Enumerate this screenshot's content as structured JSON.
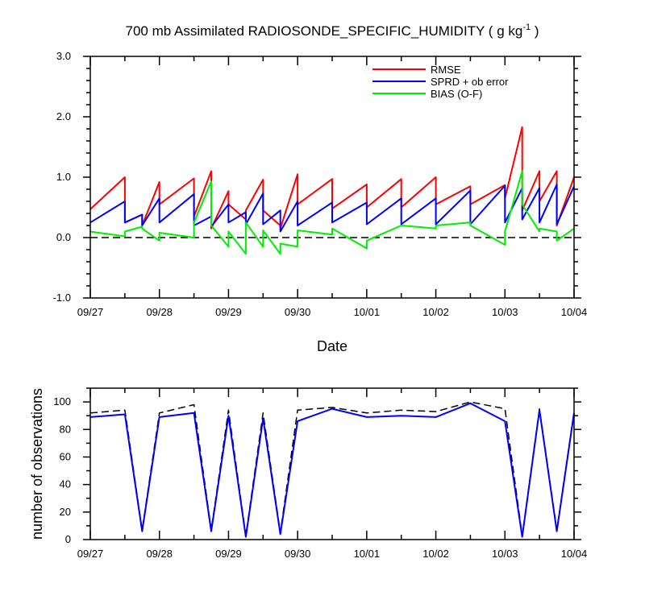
{
  "chart_data": [
    {
      "type": "line",
      "title": "700 mb Assimilated RADIOSONDE_SPECIFIC_HUMIDITY ( g kg",
      "title_superscript": "-1",
      "title_suffix": " )",
      "xlabel": "Date",
      "ylabel": "",
      "xlim": [
        0,
        7
      ],
      "ylim": [
        -1.0,
        3.0
      ],
      "x_tick_labels": [
        "09/27",
        "09/28",
        "09/29",
        "09/30",
        "10/01",
        "10/02",
        "10/03",
        "10/04"
      ],
      "y_tick_labels": [
        "-1.0",
        "0.0",
        "1.0",
        "2.0",
        "3.0"
      ],
      "y_ticks": [
        -1.0,
        0.0,
        1.0,
        2.0,
        3.0
      ],
      "reference_line": 0.0,
      "legend_position": "top-right",
      "series": [
        {
          "name": "RMSE",
          "color": "#ff0000",
          "x": [
            0,
            0.5,
            0.5,
            0.75,
            0.75,
            1,
            1,
            1.5,
            1.5,
            1.75,
            1.75,
            2,
            2,
            2.25,
            2.25,
            2.5,
            2.5,
            2.75,
            2.75,
            3,
            3,
            3.5,
            3.5,
            4,
            4,
            4.5,
            4.5,
            5,
            5,
            5.5,
            5.5,
            6,
            6,
            6.25,
            6.25,
            6.5,
            6.5,
            6.75,
            6.75,
            7
          ],
          "y": [
            0.47,
            1.0,
            0.25,
            0.38,
            0.2,
            0.92,
            0.55,
            0.98,
            0.35,
            1.1,
            0.15,
            0.77,
            0.55,
            0.3,
            0.45,
            0.96,
            0.45,
            0.2,
            0.15,
            1.05,
            0.55,
            0.97,
            0.48,
            0.88,
            0.5,
            0.97,
            0.5,
            1.0,
            0.55,
            0.85,
            0.55,
            0.87,
            0.65,
            1.83,
            0.45,
            1.1,
            0.6,
            1.1,
            0.2,
            1.0
          ]
        },
        {
          "name": "SPRD + ob error",
          "color": "#0000ff",
          "x": [
            0,
            0.5,
            0.5,
            0.75,
            0.75,
            1,
            1,
            1.5,
            1.5,
            1.75,
            1.75,
            2,
            2,
            2.25,
            2.25,
            2.5,
            2.5,
            2.75,
            2.75,
            3,
            3,
            3.5,
            3.5,
            4,
            4,
            4.5,
            4.5,
            5,
            5,
            5.5,
            5.5,
            6,
            6,
            6.25,
            6.25,
            6.5,
            6.5,
            6.75,
            6.75,
            7
          ],
          "y": [
            0.25,
            0.6,
            0.25,
            0.38,
            0.2,
            0.65,
            0.25,
            0.72,
            0.2,
            0.35,
            0.18,
            0.55,
            0.25,
            0.42,
            0.22,
            0.73,
            0.22,
            0.45,
            0.1,
            0.6,
            0.2,
            0.58,
            0.25,
            0.58,
            0.22,
            0.65,
            0.22,
            0.65,
            0.22,
            0.78,
            0.22,
            0.86,
            0.25,
            0.82,
            0.3,
            0.82,
            0.25,
            0.88,
            0.22,
            0.85
          ]
        },
        {
          "name": "BIAS (O-F)",
          "color": "#00ee00",
          "x": [
            0,
            0.5,
            0.5,
            0.75,
            0.75,
            1,
            1,
            1.5,
            1.5,
            1.75,
            1.75,
            2,
            2,
            2.25,
            2.25,
            2.5,
            2.5,
            2.75,
            2.75,
            3,
            3,
            3.5,
            3.5,
            4,
            4,
            4.5,
            4.5,
            5,
            5,
            5.5,
            5.5,
            6,
            6,
            6.25,
            6.25,
            6.5,
            6.5,
            6.75,
            6.75,
            7
          ],
          "y": [
            0.1,
            0.02,
            0.1,
            0.18,
            0.15,
            -0.05,
            0.08,
            0.0,
            0.25,
            0.93,
            0.2,
            -0.15,
            0.1,
            -0.27,
            0.25,
            -0.15,
            0.12,
            -0.27,
            -0.1,
            -0.15,
            0.12,
            0.05,
            0.15,
            -0.18,
            -0.05,
            0.2,
            0.2,
            0.15,
            0.2,
            0.25,
            0.2,
            -0.12,
            0.1,
            1.1,
            0.55,
            0.1,
            0.15,
            0.1,
            -0.05,
            0.15
          ]
        }
      ]
    },
    {
      "type": "line",
      "title": "",
      "xlabel": "",
      "ylabel": "number of observations",
      "xlim": [
        0,
        7
      ],
      "ylim": [
        0,
        110
      ],
      "x_tick_labels": [
        "09/27",
        "09/28",
        "09/29",
        "09/30",
        "10/01",
        "10/02",
        "10/03",
        "10/04"
      ],
      "y_tick_labels": [
        "0",
        "20",
        "40",
        "60",
        "80",
        "100"
      ],
      "y_ticks": [
        0,
        20,
        40,
        60,
        80,
        100
      ],
      "series": [
        {
          "color": "#000000",
          "dash": true,
          "x": [
            0,
            0.5,
            0.75,
            1,
            1.5,
            1.75,
            2,
            2.25,
            2.5,
            2.75,
            3,
            3.5,
            4,
            4.5,
            5,
            5.5,
            6,
            6.25,
            6.5,
            6.75,
            7
          ],
          "y": [
            92,
            94,
            7,
            92,
            98,
            7,
            94,
            3,
            92,
            5,
            94,
            96,
            92,
            94,
            93,
            100,
            95,
            3,
            95,
            7,
            93
          ]
        },
        {
          "color": "#0000ff",
          "dash": false,
          "x": [
            0,
            0.5,
            0.75,
            1,
            1.5,
            1.75,
            2,
            2.25,
            2.5,
            2.75,
            3,
            3.5,
            4,
            4.5,
            5,
            5.5,
            6,
            6.25,
            6.5,
            6.75,
            7
          ],
          "y": [
            89,
            91,
            6,
            89,
            92,
            6,
            90,
            2,
            88,
            4,
            86,
            95,
            89,
            90,
            89,
            99,
            86,
            2,
            94,
            6,
            92
          ]
        }
      ]
    }
  ]
}
